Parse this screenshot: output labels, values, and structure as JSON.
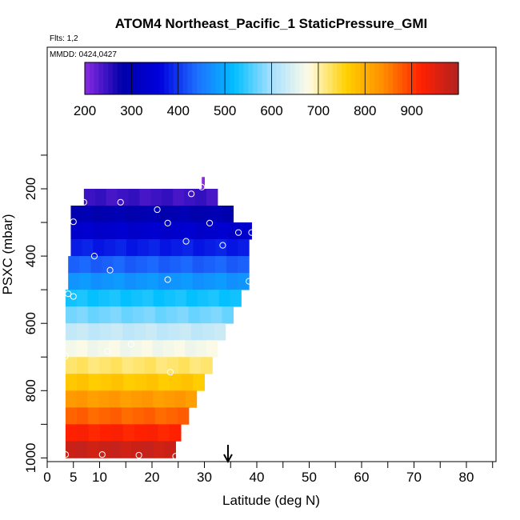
{
  "chart_data": {
    "type": "heatmap",
    "title": "ATOM4 Northeast_Pacific_1 StaticPressure_GMI",
    "flights_note": "Flts: 1,2",
    "mmdd_note": "MMDD: 0424,0427",
    "xlabel": "Latitude (deg N)",
    "ylabel": "PSXC (mbar)",
    "xlim": [
      0,
      85
    ],
    "ylim": [
      1000,
      85
    ],
    "y_reversed": true,
    "x_ticks": [
      0,
      5,
      10,
      20,
      30,
      40,
      50,
      60,
      70,
      80
    ],
    "x_minor_ticks": [
      0,
      5,
      10,
      15,
      20,
      25,
      30,
      35,
      40,
      45,
      50,
      55,
      60,
      65,
      70,
      75,
      80,
      85
    ],
    "y_ticks": [
      200,
      400,
      600,
      800,
      1000
    ],
    "colorbar": {
      "min": 200,
      "max": 1000,
      "ticks": [
        200,
        300,
        400,
        500,
        600,
        700,
        800,
        900
      ],
      "colors": [
        "#8a2be2",
        "#0000aa",
        "#0000dd",
        "#1e6fff",
        "#00bfff",
        "#a8e0ff",
        "#fffbe6",
        "#ffd000",
        "#ff8c00",
        "#ff2000",
        "#b22222"
      ]
    },
    "grid": false,
    "marker_latitude": 34.5,
    "bands": [
      {
        "p_top": 165,
        "p_bot": 200,
        "lat_min": 29.5,
        "lat_max": 30.0,
        "value": 185
      },
      {
        "p_top": 200,
        "p_bot": 250,
        "lat_min": 7,
        "lat_max": 32.5,
        "value": 245
      },
      {
        "p_top": 250,
        "p_bot": 300,
        "lat_min": 4.5,
        "lat_max": 35.5,
        "value": 290
      },
      {
        "p_top": 300,
        "p_bot": 350,
        "lat_min": 4.5,
        "lat_max": 39.0,
        "value": 335
      },
      {
        "p_top": 350,
        "p_bot": 400,
        "lat_min": 4.5,
        "lat_max": 38.5,
        "value": 380
      },
      {
        "p_top": 400,
        "p_bot": 450,
        "lat_min": 4.0,
        "lat_max": 38.5,
        "value": 430
      },
      {
        "p_top": 450,
        "p_bot": 500,
        "lat_min": 4.0,
        "lat_max": 38.5,
        "value": 478
      },
      {
        "p_top": 500,
        "p_bot": 550,
        "lat_min": 3.5,
        "lat_max": 37.0,
        "value": 528
      },
      {
        "p_top": 550,
        "p_bot": 600,
        "lat_min": 3.5,
        "lat_max": 35.5,
        "value": 575
      },
      {
        "p_top": 600,
        "p_bot": 650,
        "lat_min": 3.5,
        "lat_max": 34.0,
        "value": 625
      },
      {
        "p_top": 650,
        "p_bot": 700,
        "lat_min": 3.5,
        "lat_max": 32.5,
        "value": 670
      },
      {
        "p_top": 700,
        "p_bot": 750,
        "lat_min": 3.5,
        "lat_max": 31.5,
        "value": 722
      },
      {
        "p_top": 750,
        "p_bot": 800,
        "lat_min": 3.5,
        "lat_max": 30.0,
        "value": 770
      },
      {
        "p_top": 800,
        "p_bot": 850,
        "lat_min": 3.5,
        "lat_max": 28.5,
        "value": 822
      },
      {
        "p_top": 850,
        "p_bot": 900,
        "lat_min": 3.5,
        "lat_max": 27.0,
        "value": 870
      },
      {
        "p_top": 900,
        "p_bot": 950,
        "lat_min": 3.5,
        "lat_max": 25.5,
        "value": 920
      },
      {
        "p_top": 950,
        "p_bot": 1000,
        "lat_min": 3.5,
        "lat_max": 24.5,
        "value": 975
      }
    ],
    "points": [
      {
        "lat": 29.5,
        "p": 195
      },
      {
        "lat": 27.5,
        "p": 215
      },
      {
        "lat": 7.0,
        "p": 240
      },
      {
        "lat": 14.0,
        "p": 240
      },
      {
        "lat": 21.0,
        "p": 262
      },
      {
        "lat": 5.0,
        "p": 298
      },
      {
        "lat": 23.0,
        "p": 302
      },
      {
        "lat": 31.0,
        "p": 302
      },
      {
        "lat": 36.5,
        "p": 330
      },
      {
        "lat": 39.0,
        "p": 330
      },
      {
        "lat": 26.5,
        "p": 356
      },
      {
        "lat": 33.5,
        "p": 368
      },
      {
        "lat": 9.0,
        "p": 400
      },
      {
        "lat": 12.0,
        "p": 442
      },
      {
        "lat": 23.0,
        "p": 470
      },
      {
        "lat": 38.5,
        "p": 475
      },
      {
        "lat": 4.0,
        "p": 512
      },
      {
        "lat": 5.0,
        "p": 520
      },
      {
        "lat": 16.0,
        "p": 662
      },
      {
        "lat": 11.5,
        "p": 683
      },
      {
        "lat": 3.5,
        "p": 697
      },
      {
        "lat": 23.5,
        "p": 745
      },
      {
        "lat": 3.5,
        "p": 990
      },
      {
        "lat": 10.5,
        "p": 990
      },
      {
        "lat": 17.5,
        "p": 992
      },
      {
        "lat": 24.5,
        "p": 995
      }
    ]
  }
}
